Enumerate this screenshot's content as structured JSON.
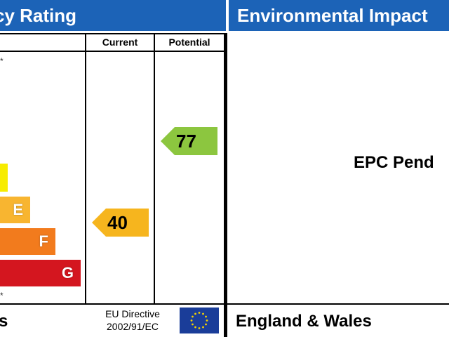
{
  "header": {
    "left_title": "cy Rating",
    "right_title": "Environmental Impact"
  },
  "columns": {
    "current": "Current",
    "potential": "Potential"
  },
  "bands": [
    {
      "letter": "",
      "color": "#f7ec00"
    },
    {
      "letter": "E",
      "color": "#f8b530"
    },
    {
      "letter": "F",
      "color": "#f27b1d"
    },
    {
      "letter": "G",
      "color": "#d4161f"
    }
  ],
  "ratings": {
    "current": {
      "value": "40",
      "color": "#f6b51e"
    },
    "potential": {
      "value": "77",
      "color": "#8cc63f"
    }
  },
  "right_panel": {
    "status": "EPC Pend"
  },
  "footer": {
    "left_fragment": "s",
    "directive_line1": "EU Directive",
    "directive_line2": "2002/91/EC",
    "region": "England & Wales"
  },
  "flag": {
    "background": "#1a3d99",
    "stars": "#f5d200"
  }
}
